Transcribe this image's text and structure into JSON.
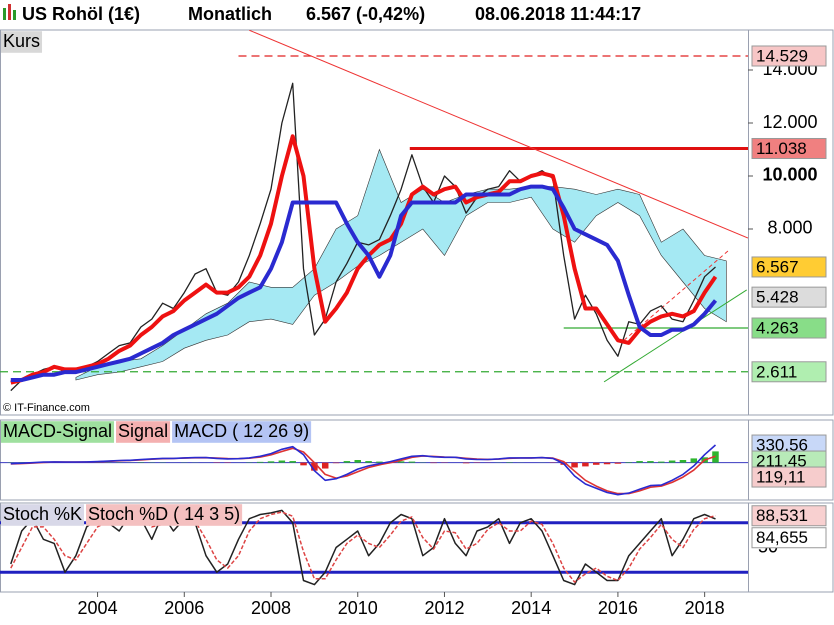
{
  "header": {
    "symbol": "US Rohöl (1€)",
    "period": "Monatlich",
    "quote": "6.567 (-0,42%)",
    "timestamp": "08.06.2018 11:44:17"
  },
  "chart_data": [
    {
      "type": "price",
      "label": "Kurs",
      "source": "© IT-Finance.com",
      "xlim": [
        2001.75,
        2019
      ],
      "xticks": [
        2004,
        2006,
        2008,
        2010,
        2012,
        2014,
        2016,
        2018
      ],
      "ylim": [
        0.98,
        15.51
      ],
      "yticks": [
        {
          "value": 14,
          "label": "14.000"
        },
        {
          "value": 12,
          "label": "12.000"
        },
        {
          "value": 10,
          "label": "10.000",
          "bold": true
        },
        {
          "value": 8,
          "label": "8.000"
        }
      ],
      "x": [
        2002,
        2002.25,
        2002.5,
        2002.75,
        2003,
        2003.25,
        2003.5,
        2003.75,
        2004,
        2004.25,
        2004.5,
        2004.75,
        2005,
        2005.25,
        2005.5,
        2005.75,
        2006,
        2006.25,
        2006.5,
        2006.75,
        2007,
        2007.25,
        2007.5,
        2007.75,
        2008,
        2008.25,
        2008.5,
        2008.75,
        2009,
        2009.25,
        2009.5,
        2009.75,
        2010,
        2010.25,
        2010.5,
        2010.75,
        2011,
        2011.25,
        2011.5,
        2011.75,
        2012,
        2012.25,
        2012.5,
        2012.75,
        2013,
        2013.25,
        2013.5,
        2013.75,
        2014,
        2014.25,
        2014.5,
        2014.75,
        2015,
        2015.25,
        2015.5,
        2015.75,
        2016,
        2016.25,
        2016.5,
        2016.75,
        2017,
        2017.25,
        2017.5,
        2017.75,
        2018,
        2018.25
      ],
      "series": [
        {
          "color": "#222222",
          "values": [
            1.9,
            2.3,
            2.5,
            2.7,
            2.8,
            2.6,
            2.7,
            2.8,
            3.0,
            3.3,
            3.6,
            3.7,
            4.3,
            4.6,
            5.2,
            5.0,
            5.6,
            6.3,
            6.5,
            5.6,
            5.5,
            6.0,
            7.0,
            8.2,
            9.5,
            12.0,
            13.5,
            6.5,
            4.0,
            4.6,
            6.0,
            6.7,
            7.5,
            7.4,
            7.6,
            8.5,
            9.5,
            10.8,
            9.6,
            9.0,
            10.0,
            9.6,
            8.6,
            9.2,
            9.5,
            9.6,
            10.2,
            9.8,
            10.0,
            10.2,
            9.9,
            7.0,
            4.6,
            5.5,
            4.8,
            3.8,
            3.2,
            4.5,
            4.4,
            4.9,
            5.1,
            4.6,
            4.5,
            5.3,
            6.2,
            6.567
          ]
        },
        {
          "color": "#ee1111",
          "values": [
            2.2,
            2.3,
            2.5,
            2.6,
            2.8,
            2.7,
            2.7,
            2.8,
            2.9,
            3.1,
            3.4,
            3.6,
            4.0,
            4.3,
            4.7,
            4.9,
            5.3,
            5.6,
            5.9,
            5.6,
            5.6,
            5.8,
            6.2,
            7.0,
            8.2,
            10.0,
            11.5,
            10.0,
            6.5,
            4.5,
            5.0,
            5.6,
            6.5,
            7.0,
            7.4,
            7.6,
            8.2,
            9.3,
            9.6,
            9.3,
            9.5,
            9.6,
            9.0,
            9.2,
            9.3,
            9.4,
            9.8,
            9.8,
            10.0,
            10.1,
            10.0,
            8.5,
            6.5,
            5.0,
            5.0,
            4.4,
            3.8,
            3.7,
            4.2,
            4.5,
            4.7,
            4.8,
            4.7,
            4.9,
            5.6,
            6.2
          ]
        },
        {
          "color": "#2a2ad0",
          "values": [
            2.3,
            2.3,
            2.4,
            2.5,
            2.5,
            2.6,
            2.6,
            2.7,
            2.8,
            2.9,
            3.0,
            3.1,
            3.3,
            3.5,
            3.7,
            4.0,
            4.2,
            4.4,
            4.6,
            4.8,
            5.1,
            5.4,
            5.6,
            5.8,
            6.5,
            7.5,
            9.0,
            9.0,
            9.0,
            9.0,
            9.0,
            8.2,
            7.5,
            7.0,
            6.2,
            7.0,
            8.5,
            9.0,
            9.0,
            9.0,
            9.0,
            9.0,
            9.3,
            9.3,
            9.3,
            9.3,
            9.3,
            9.5,
            9.6,
            9.6,
            9.5,
            8.8,
            8.0,
            7.8,
            7.6,
            7.4,
            6.8,
            5.5,
            4.3,
            4.0,
            4.0,
            4.2,
            4.2,
            4.4,
            4.8,
            5.3
          ]
        }
      ],
      "cloud": {
        "color": "#8fe3f0",
        "x": [
          2003.5,
          2004,
          2004.5,
          2005,
          2005.5,
          2006,
          2006.5,
          2007,
          2007.5,
          2008,
          2008.5,
          2009,
          2009.5,
          2010,
          2010.5,
          2011,
          2011.5,
          2012,
          2012.5,
          2013,
          2013.5,
          2014,
          2014.5,
          2015,
          2015.5,
          2016,
          2016.5,
          2017,
          2017.5,
          2018,
          2018.5
        ],
        "lower": [
          2.3,
          2.5,
          2.6,
          2.8,
          3.0,
          3.5,
          3.8,
          4.0,
          4.5,
          4.6,
          4.4,
          5.5,
          6.0,
          6.6,
          7.0,
          7.5,
          8.0,
          7.0,
          8.5,
          9.0,
          9.0,
          9.2,
          8.0,
          7.5,
          8.5,
          9.0,
          8.5,
          7.0,
          6.0,
          5.0,
          4.5
        ],
        "upper": [
          2.4,
          2.8,
          3.0,
          3.1,
          3.6,
          4.2,
          4.8,
          5.2,
          6.0,
          5.8,
          5.8,
          6.5,
          8.0,
          8.5,
          11.0,
          9.0,
          9.5,
          9.0,
          9.3,
          9.5,
          9.5,
          9.6,
          9.6,
          9.5,
          9.3,
          9.5,
          9.3,
          7.5,
          8.0,
          7.0,
          6.8
        ]
      },
      "levels": [
        {
          "value": 14.529,
          "from": 2007.25,
          "color": "#e02020",
          "dashed": true,
          "box_color": "#f7c6c6"
        },
        {
          "value": 11.038,
          "from": 2011.2,
          "color": "#e01010",
          "bold": true,
          "box_color": "#f08080"
        },
        {
          "value": 4.263,
          "from": 2014.75,
          "color": "#33aa33",
          "box_color": "#88dd88"
        },
        {
          "value": 2.611,
          "from": 2001.75,
          "color": "#33aa33",
          "dashed": true,
          "box_color": "#b0eeb0"
        }
      ],
      "markers": [
        {
          "value": 6.567,
          "box_color": "#ffcc33"
        },
        {
          "value": 5.428,
          "box_color": "#dcdcdc"
        }
      ],
      "trendlines": [
        {
          "x": [
            2007.5,
            2019
          ],
          "y": [
            15.5,
            7.66
          ],
          "color": "#ee3333"
        },
        {
          "x": [
            2015.68,
            2018.97
          ],
          "y": [
            2.23,
            5.7
          ],
          "color": "#33aa33"
        },
        {
          "x": [
            2016.14,
            2018.56
          ],
          "y": [
            3.8,
            7.2
          ],
          "color": "#ee3333",
          "dashed": true
        }
      ]
    },
    {
      "type": "macd",
      "ylim": [
        -700,
        800
      ],
      "series": [
        {
          "name": "MACD-Signal",
          "kind": "bar",
          "color": "#2fb52f",
          "negative_color": "#dd2222",
          "legend_color": "#9fe09f",
          "box_color": "#b8eab8",
          "last_label": "211,45",
          "values": [
            5,
            8,
            8,
            7,
            5,
            -2,
            -1,
            2,
            3,
            5,
            5,
            3,
            8,
            5,
            5,
            1,
            4,
            3,
            1,
            -6,
            -6,
            1,
            6,
            15,
            25,
            40,
            30,
            -50,
            -150,
            -110,
            -10,
            30,
            50,
            30,
            20,
            20,
            25,
            20,
            5,
            -8,
            -5,
            0,
            -12,
            -6,
            -2,
            3,
            8,
            2,
            0,
            2,
            -5,
            -40,
            -90,
            -70,
            -40,
            -30,
            -20,
            10,
            30,
            30,
            20,
            40,
            50,
            80,
            100,
            211.45
          ]
        },
        {
          "name": "Signal",
          "kind": "line",
          "color": "#dd3333",
          "legend_color": "#f4b0b0",
          "box_color": "#f6cccc",
          "last_label": "119,11",
          "values": [
            -25,
            -18,
            -8,
            3,
            10,
            12,
            11,
            13,
            17,
            25,
            35,
            42,
            52,
            65,
            75,
            79,
            86,
            92,
            94,
            86,
            76,
            74,
            84,
            105,
            145,
            210,
            270,
            200,
            0,
            -220,
            -290,
            -250,
            -170,
            -90,
            -40,
            0,
            45,
            100,
            125,
            118,
            105,
            100,
            82,
            66,
            62,
            67,
            82,
            88,
            90,
            93,
            85,
            20,
            -160,
            -330,
            -440,
            -530,
            -580,
            -580,
            -530,
            -460,
            -440,
            -370,
            -270,
            -140,
            50,
            119.11
          ]
        },
        {
          "name": "MACD ( 12 26 9)",
          "kind": "line",
          "color": "#2a2ad0",
          "legend_color": "#b4c4f4",
          "box_color": "#c8d8f8",
          "last_label": "330,56",
          "values": [
            -20,
            -10,
            0,
            10,
            15,
            10,
            10,
            15,
            20,
            30,
            40,
            45,
            60,
            70,
            80,
            80,
            90,
            95,
            95,
            80,
            70,
            75,
            90,
            120,
            170,
            250,
            300,
            150,
            -150,
            -330,
            -300,
            -220,
            -120,
            -60,
            -20,
            20,
            70,
            120,
            130,
            110,
            100,
            100,
            70,
            60,
            60,
            70,
            90,
            90,
            90,
            95,
            80,
            -20,
            -250,
            -400,
            -480,
            -560,
            -600,
            -570,
            -500,
            -430,
            -420,
            -330,
            -220,
            -60,
            150,
            330.56
          ]
        }
      ]
    },
    {
      "type": "stochastic",
      "ylim": [
        -4,
        104
      ],
      "yticks": [
        50
      ],
      "levels": [
        80,
        20
      ],
      "level_color": "#2020c0",
      "series": [
        {
          "name": "Stoch %K",
          "color": "#222222",
          "legend_color": "#d8d8e8",
          "box_color": "#ffffff",
          "last_label": "84,655",
          "values": [
            30,
            70,
            85,
            60,
            55,
            20,
            40,
            75,
            85,
            80,
            70,
            90,
            85,
            60,
            90,
            70,
            85,
            80,
            40,
            20,
            30,
            60,
            85,
            90,
            92,
            95,
            80,
            10,
            5,
            20,
            50,
            60,
            70,
            40,
            55,
            80,
            90,
            85,
            40,
            50,
            85,
            55,
            40,
            70,
            75,
            85,
            55,
            80,
            85,
            70,
            40,
            10,
            5,
            30,
            20,
            10,
            10,
            40,
            55,
            70,
            85,
            40,
            60,
            85,
            90,
            84.655
          ]
        },
        {
          "name": "Stoch %D ( 14 3 5)",
          "color": "#dd4444",
          "legend_color": "#f4c0c0",
          "box_color": "#f8d0d0",
          "last_label": "88,531",
          "values": [
            25,
            50,
            75,
            75,
            60,
            40,
            35,
            55,
            75,
            82,
            78,
            82,
            85,
            75,
            78,
            80,
            80,
            82,
            60,
            35,
            25,
            40,
            70,
            85,
            90,
            93,
            88,
            45,
            12,
            12,
            35,
            55,
            65,
            55,
            50,
            65,
            82,
            87,
            62,
            48,
            70,
            68,
            48,
            55,
            72,
            80,
            70,
            70,
            82,
            78,
            55,
            25,
            8,
            18,
            25,
            15,
            10,
            25,
            48,
            62,
            78,
            60,
            50,
            72,
            85,
            88.531
          ]
        }
      ]
    }
  ]
}
